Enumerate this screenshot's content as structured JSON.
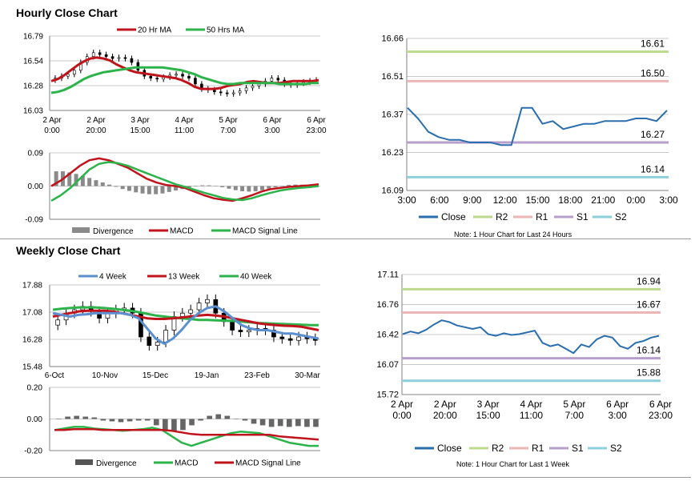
{
  "hourly": {
    "title": "Hourly Close Chart",
    "price_panel": {
      "legend": [
        "20 Hr MA",
        "50 Hrs MA"
      ],
      "y_ticks": [
        "16.79",
        "16.54",
        "16.28",
        "16.03"
      ],
      "x_ticks": [
        [
          "2 Apr",
          "0:00"
        ],
        [
          "2 Apr",
          "20:00"
        ],
        [
          "3 Apr",
          "15:00"
        ],
        [
          "4 Apr",
          "11:00"
        ],
        [
          "5 Apr",
          "7:00"
        ],
        [
          "6 Apr",
          "3:00"
        ],
        [
          "6 Apr",
          "23:00"
        ]
      ]
    },
    "macd_panel": {
      "y_ticks": [
        "0.09",
        "0.00",
        "-0.09"
      ],
      "legend": [
        "Divergence",
        "MACD",
        "MACD Signal Line"
      ]
    }
  },
  "hourly_pivot": {
    "legend": [
      "Close",
      "R2",
      "R1",
      "S1",
      "S2"
    ],
    "note": "Note: 1 Hour Chart for Last 24 Hours",
    "y_ticks": [
      "16.66",
      "16.51",
      "16.37",
      "16.23",
      "16.09"
    ],
    "x_ticks": [
      "3:00",
      "6:00",
      "9:00",
      "12:00",
      "15:00",
      "18:00",
      "21:00",
      "0:00",
      "3:00"
    ],
    "level_labels": [
      "16.61",
      "16.50",
      "16.27",
      "16.14"
    ]
  },
  "weekly": {
    "title": "Weekly Close Chart",
    "price_panel": {
      "legend": [
        "4 Week",
        "13 Week",
        "40 Week"
      ],
      "y_ticks": [
        "17.88",
        "17.08",
        "16.28",
        "15.48"
      ],
      "x_ticks": [
        "6-Oct",
        "10-Nov",
        "15-Dec",
        "19-Jan",
        "23-Feb",
        "30-Mar"
      ]
    },
    "macd_panel": {
      "y_ticks": [
        "0.20",
        "0.00",
        "-0.20"
      ],
      "legend": [
        "Divergence",
        "MACD",
        "MACD Signal Line"
      ]
    }
  },
  "weekly_pivot": {
    "legend": [
      "Close",
      "R2",
      "R1",
      "S1",
      "S2"
    ],
    "note": "Note: 1 Hour Chart for Last 1 Week",
    "y_ticks": [
      "17.11",
      "16.76",
      "16.42",
      "16.07",
      "15.72"
    ],
    "x_ticks": [
      [
        "2 Apr",
        "0:00"
      ],
      [
        "2 Apr",
        "20:00"
      ],
      [
        "3 Apr",
        "15:00"
      ],
      [
        "4 Apr",
        "11:00"
      ],
      [
        "5 Apr",
        "7:00"
      ],
      [
        "6 Apr",
        "3:00"
      ],
      [
        "6 Apr",
        "23:00"
      ]
    ],
    "level_labels": [
      "16.94",
      "16.67",
      "16.14",
      "15.88"
    ]
  },
  "colors": {
    "ma20": "#c0141c",
    "ma50": "#2cb34a",
    "close": "#2a6ead",
    "r2": "#bcd98e",
    "r1": "#ecb6b6",
    "s1": "#b79fcb",
    "s2": "#8ecfdc",
    "ma4": "#5b8fd0",
    "divergence": "#8a8a8a",
    "grid": "#c8c8c8",
    "axis": "#808080"
  },
  "chart_data": [
    {
      "id": "hourly-price",
      "type": "candlestick",
      "ylim": [
        16.03,
        16.79
      ],
      "series": [
        {
          "name": "Price",
          "values": [
            16.36,
            16.38,
            16.4,
            16.44,
            16.52,
            16.58,
            16.62,
            16.6,
            16.58,
            16.56,
            16.57,
            16.56,
            16.52,
            16.44,
            16.38,
            16.36,
            16.35,
            16.37,
            16.39,
            16.4,
            16.38,
            16.36,
            16.3,
            16.25,
            16.24,
            16.22,
            16.21,
            16.2,
            16.21,
            16.23,
            16.26,
            16.28,
            16.3,
            16.33,
            16.36,
            16.34,
            16.3,
            16.29,
            16.31,
            16.32,
            16.33,
            16.34
          ]
        },
        {
          "name": "20 Hr MA",
          "values": [
            16.33,
            16.35,
            16.39,
            16.44,
            16.49,
            16.53,
            16.56,
            16.57,
            16.56,
            16.54,
            16.5,
            16.47,
            16.44,
            16.42,
            16.41,
            16.4,
            16.39,
            16.38,
            16.37,
            16.36,
            16.34,
            16.31,
            16.27,
            16.25,
            16.25,
            16.25,
            16.26,
            16.28,
            16.29,
            16.3,
            16.32,
            16.33,
            16.32,
            16.31,
            16.31,
            16.31,
            16.32,
            16.33,
            16.33,
            16.33,
            16.33,
            16.34
          ]
        },
        {
          "name": "50 Hrs MA",
          "values": [
            16.21,
            16.22,
            16.24,
            16.27,
            16.31,
            16.35,
            16.38,
            16.4,
            16.42,
            16.43,
            16.44,
            16.45,
            16.46,
            16.47,
            16.47,
            16.47,
            16.47,
            16.47,
            16.46,
            16.45,
            16.44,
            16.42,
            16.4,
            16.37,
            16.35,
            16.33,
            16.31,
            16.3,
            16.3,
            16.31,
            16.31,
            16.31,
            16.31,
            16.31,
            16.31,
            16.3,
            16.3,
            16.3,
            16.3,
            16.3,
            16.31,
            16.31
          ]
        }
      ]
    },
    {
      "id": "hourly-macd",
      "type": "bar+line",
      "ylim": [
        -0.09,
        0.09
      ],
      "series": [
        {
          "name": "Divergence",
          "values": [
            0.04,
            0.04,
            0.037,
            0.033,
            0.028,
            0.022,
            0.016,
            0.01,
            0.004,
            -0.002,
            -0.008,
            -0.013,
            -0.017,
            -0.02,
            -0.022,
            -0.022,
            -0.02,
            -0.016,
            -0.012,
            -0.008,
            -0.004,
            -0.001,
            0.002,
            0.002,
            0.001,
            -0.003,
            -0.007,
            -0.011,
            -0.014,
            -0.015,
            -0.014,
            -0.011,
            -0.007,
            -0.003,
            0.001,
            0.003,
            0.004,
            0.004,
            0.003,
            0.002
          ]
        },
        {
          "name": "MACD",
          "values": [
            0.0,
            0.015,
            0.035,
            0.055,
            0.07,
            0.075,
            0.07,
            0.06,
            0.05,
            0.035,
            0.02,
            0.01,
            0.003,
            0.0,
            -0.005,
            -0.015,
            -0.025,
            -0.033,
            -0.037,
            -0.04,
            -0.033,
            -0.025,
            -0.015,
            -0.008,
            -0.005,
            -0.002,
            0.0,
            0.002,
            0.005
          ]
        },
        {
          "name": "MACD Signal Line",
          "values": [
            -0.04,
            -0.025,
            -0.005,
            0.02,
            0.045,
            0.06,
            0.065,
            0.062,
            0.055,
            0.045,
            0.035,
            0.025,
            0.015,
            0.005,
            -0.002,
            -0.01,
            -0.018,
            -0.025,
            -0.032,
            -0.036,
            -0.038,
            -0.033,
            -0.025,
            -0.018,
            -0.012,
            -0.008,
            -0.005,
            -0.003,
            0.0
          ]
        }
      ]
    },
    {
      "id": "hourly-pivot",
      "type": "line",
      "ylim": [
        16.09,
        16.66
      ],
      "levels": {
        "R2": 16.61,
        "R1": 16.5,
        "S1": 16.27,
        "S2": 16.14
      },
      "series": [
        {
          "name": "Close",
          "values": [
            16.4,
            16.36,
            16.31,
            16.29,
            16.28,
            16.28,
            16.27,
            16.27,
            16.27,
            16.26,
            16.26,
            16.4,
            16.4,
            16.34,
            16.35,
            16.32,
            16.33,
            16.34,
            16.34,
            16.35,
            16.35,
            16.35,
            16.36,
            16.36,
            16.35,
            16.39
          ]
        }
      ]
    },
    {
      "id": "weekly-price",
      "type": "candlestick",
      "ylim": [
        15.48,
        17.88
      ],
      "series": [
        {
          "name": "Price",
          "values": [
            16.85,
            17.05,
            17.15,
            17.25,
            17.1,
            16.9,
            17.05,
            17.15,
            17.2,
            17.05,
            16.35,
            16.1,
            16.2,
            16.55,
            16.95,
            17.05,
            17.15,
            17.35,
            17.45,
            17.05,
            16.8,
            16.55,
            16.5,
            16.55,
            16.6,
            16.55,
            16.35,
            16.3,
            16.25,
            16.35,
            16.3,
            16.25
          ]
        },
        {
          "name": "4 Week",
          "values": [
            17.05,
            17.0,
            16.95,
            17.0,
            17.02,
            17.05,
            17.05,
            17.05,
            17.05,
            17.0,
            16.9,
            16.6,
            16.3,
            16.15,
            16.3,
            16.55,
            16.85,
            17.05,
            17.2,
            17.25,
            17.1,
            16.9,
            16.7,
            16.6,
            16.55,
            16.55,
            16.5,
            16.45,
            16.45,
            16.4,
            16.35,
            16.3
          ]
        },
        {
          "name": "13 Week",
          "values": [
            16.95,
            17.0,
            17.05,
            17.1,
            17.12,
            17.12,
            17.12,
            17.1,
            17.05,
            17.0,
            16.95,
            16.9,
            16.88,
            16.88,
            16.9,
            16.92,
            16.95,
            16.98,
            17.0,
            16.98,
            16.95,
            16.9,
            16.85,
            16.8,
            16.75,
            16.72,
            16.7,
            16.68,
            16.67,
            16.65,
            16.6,
            16.55
          ]
        },
        {
          "name": "40 Week",
          "values": [
            17.15,
            17.18,
            17.2,
            17.22,
            17.22,
            17.22,
            17.2,
            17.18,
            17.15,
            17.12,
            17.08,
            17.03,
            16.98,
            16.95,
            16.92,
            16.9,
            16.88,
            16.85,
            16.85,
            16.84,
            16.83,
            16.82,
            16.8,
            16.78,
            16.76,
            16.75,
            16.74,
            16.73,
            16.72,
            16.71,
            16.7,
            16.7
          ]
        }
      ]
    },
    {
      "id": "weekly-macd",
      "type": "bar+line",
      "ylim": [
        -0.2,
        0.2
      ],
      "series": [
        {
          "name": "Divergence",
          "values": [
            0.0,
            0.015,
            0.02,
            0.015,
            0.01,
            -0.01,
            -0.015,
            -0.02,
            -0.015,
            -0.01,
            -0.01,
            -0.04,
            -0.07,
            -0.08,
            -0.07,
            -0.04,
            -0.01,
            0.02,
            0.03,
            0.02,
            0.0,
            -0.01,
            -0.03,
            -0.04,
            -0.05,
            -0.045,
            -0.05,
            -0.045,
            -0.05,
            -0.05
          ]
        },
        {
          "name": "MACD",
          "values": [
            -0.07,
            -0.06,
            -0.05,
            -0.05,
            -0.06,
            -0.065,
            -0.07,
            -0.075,
            -0.07,
            -0.065,
            -0.055,
            -0.07,
            -0.11,
            -0.15,
            -0.17,
            -0.15,
            -0.13,
            -0.11,
            -0.09,
            -0.08,
            -0.085,
            -0.09,
            -0.11,
            -0.13,
            -0.15,
            -0.16,
            -0.17,
            -0.17
          ]
        },
        {
          "name": "MACD Signal Line",
          "values": [
            -0.07,
            -0.07,
            -0.065,
            -0.065,
            -0.065,
            -0.07,
            -0.07,
            -0.07,
            -0.07,
            -0.07,
            -0.07,
            -0.07,
            -0.075,
            -0.085,
            -0.095,
            -0.1,
            -0.1,
            -0.1,
            -0.1,
            -0.1,
            -0.1,
            -0.1,
            -0.1,
            -0.11,
            -0.115,
            -0.12,
            -0.125,
            -0.13
          ]
        }
      ]
    },
    {
      "id": "weekly-pivot",
      "type": "line",
      "ylim": [
        15.72,
        17.11
      ],
      "levels": {
        "R2": 16.94,
        "R1": 16.67,
        "S1": 16.14,
        "S2": 15.88
      },
      "series": [
        {
          "name": "Close",
          "values": [
            16.42,
            16.45,
            16.43,
            16.47,
            16.53,
            16.58,
            16.56,
            16.52,
            16.5,
            16.48,
            16.5,
            16.42,
            16.4,
            16.43,
            16.41,
            16.42,
            16.44,
            16.46,
            16.32,
            16.28,
            16.3,
            16.25,
            16.2,
            16.3,
            16.27,
            16.36,
            16.4,
            16.38,
            16.28,
            16.25,
            16.32,
            16.34,
            16.38,
            16.4
          ]
        }
      ]
    }
  ]
}
